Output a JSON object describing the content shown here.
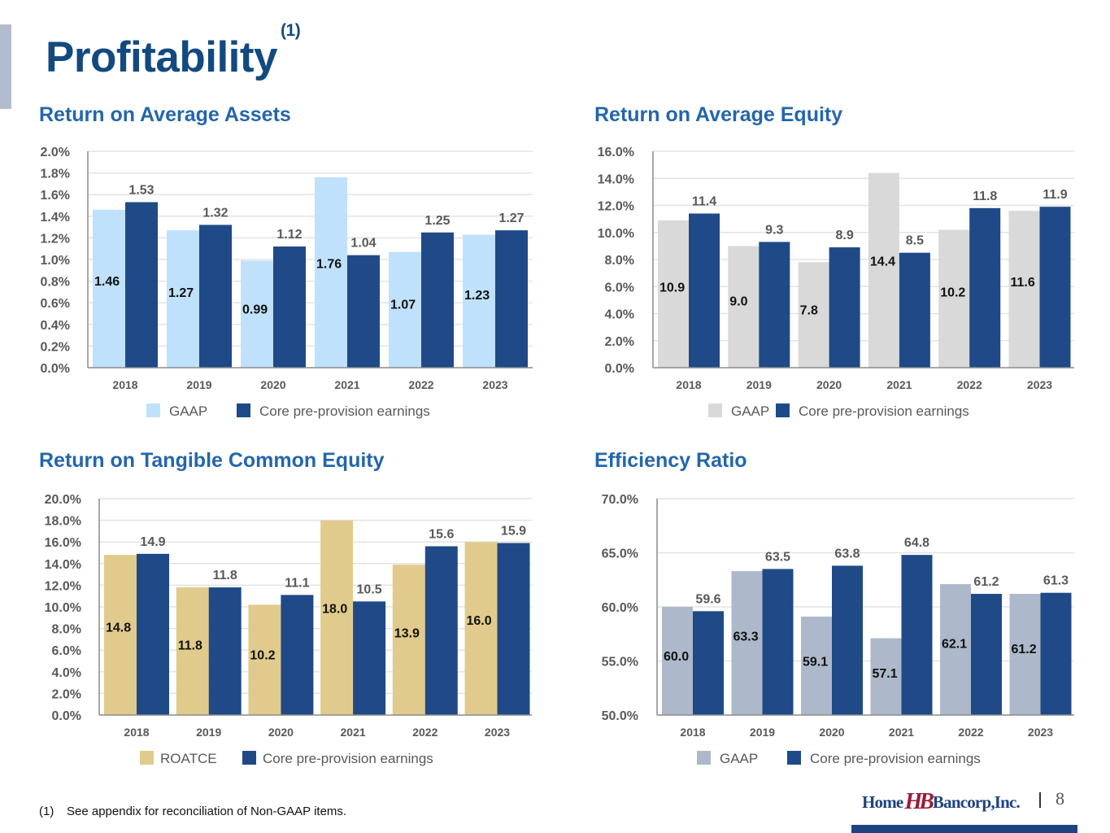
{
  "page": {
    "title": "Profitability",
    "title_footnote_ref": "(1)",
    "footnote_marker": "(1)",
    "footnote_text": "See appendix for reconciliation of Non-GAAP items.",
    "page_number": "8",
    "logo": {
      "left": "Home",
      "mark": "HB",
      "right": "Bancorp,Inc."
    }
  },
  "chart_data": [
    {
      "id": "roaa",
      "type": "bar",
      "title": "Return on Average Assets",
      "xlabel": "",
      "ylabel": "",
      "categories": [
        "2018",
        "2019",
        "2020",
        "2021",
        "2022",
        "2023"
      ],
      "ylim": [
        0,
        2.0
      ],
      "yticks": [
        "0.0%",
        "0.2%",
        "0.4%",
        "0.6%",
        "0.8%",
        "1.0%",
        "1.2%",
        "1.4%",
        "1.6%",
        "1.8%",
        "2.0%"
      ],
      "ytick_step": 0.2,
      "grid": true,
      "legend_position": "bottom",
      "series": [
        {
          "name": "GAAP",
          "color": "#bfe1fb",
          "label_position": "inside",
          "values": [
            1.46,
            1.27,
            0.99,
            1.76,
            1.07,
            1.23
          ],
          "labels": [
            "1.46",
            "1.27",
            "0.99",
            "1.76",
            "1.07",
            "1.23"
          ]
        },
        {
          "name": "Core pre-provision earnings",
          "color": "#1f4a87",
          "label_position": "above",
          "values": [
            1.53,
            1.32,
            1.12,
            1.04,
            1.25,
            1.27
          ],
          "labels": [
            "1.53",
            "1.32",
            "1.12",
            "1.04",
            "1.25",
            "1.27"
          ]
        }
      ]
    },
    {
      "id": "roae",
      "type": "bar",
      "title": "Return on Average Equity",
      "xlabel": "",
      "ylabel": "",
      "categories": [
        "2018",
        "2019",
        "2020",
        "2021",
        "2022",
        "2023"
      ],
      "ylim": [
        0,
        16.0
      ],
      "yticks": [
        "0.0%",
        "2.0%",
        "4.0%",
        "6.0%",
        "8.0%",
        "10.0%",
        "12.0%",
        "14.0%",
        "16.0%"
      ],
      "ytick_step": 2.0,
      "grid": true,
      "legend_position": "bottom",
      "series": [
        {
          "name": "GAAP",
          "color": "#d9d9d9",
          "label_position": "inside",
          "values": [
            10.9,
            9.0,
            7.8,
            14.4,
            10.2,
            11.6
          ],
          "labels": [
            "10.9",
            "9.0",
            "7.8",
            "14.4",
            "10.2",
            "11.6"
          ]
        },
        {
          "name": "Core pre-provision earnings",
          "color": "#1f4a87",
          "label_position": "above",
          "values": [
            11.4,
            9.3,
            8.9,
            8.5,
            11.8,
            11.9
          ],
          "labels": [
            "11.4",
            "9.3",
            "8.9",
            "8.5",
            "11.8",
            "11.9"
          ]
        }
      ]
    },
    {
      "id": "rotce",
      "type": "bar",
      "title": "Return on Tangible Common Equity",
      "xlabel": "",
      "ylabel": "",
      "categories": [
        "2018",
        "2019",
        "2020",
        "2021",
        "2022",
        "2023"
      ],
      "ylim": [
        0,
        20.0
      ],
      "yticks": [
        "0.0%",
        "2.0%",
        "4.0%",
        "6.0%",
        "8.0%",
        "10.0%",
        "12.0%",
        "14.0%",
        "16.0%",
        "18.0%",
        "20.0%"
      ],
      "ytick_step": 2.0,
      "grid": true,
      "legend_position": "bottom",
      "series": [
        {
          "name": "ROATCE",
          "color": "#e1cb8c",
          "label_position": "inside",
          "values": [
            14.8,
            11.8,
            10.2,
            18.0,
            13.9,
            16.0
          ],
          "labels": [
            "14.8",
            "11.8",
            "10.2",
            "18.0",
            "13.9",
            "16.0"
          ]
        },
        {
          "name": "Core pre-provision earnings",
          "color": "#1f4a87",
          "label_position": "above",
          "values": [
            14.9,
            11.8,
            11.1,
            10.5,
            15.6,
            15.9
          ],
          "labels": [
            "14.9",
            "11.8",
            "11.1",
            "10.5",
            "15.6",
            "15.9"
          ]
        }
      ]
    },
    {
      "id": "efficiency",
      "type": "bar",
      "title": "Efficiency Ratio",
      "xlabel": "",
      "ylabel": "",
      "categories": [
        "2018",
        "2019",
        "2020",
        "2021",
        "2022",
        "2023"
      ],
      "ylim": [
        50.0,
        70.0
      ],
      "yticks": [
        "50.0%",
        "55.0%",
        "60.0%",
        "65.0%",
        "70.0%"
      ],
      "ytick_step": 5.0,
      "grid": true,
      "legend_position": "bottom",
      "series": [
        {
          "name": "GAAP",
          "color": "#adb9ca",
          "label_position": "inside",
          "values": [
            60.0,
            63.3,
            59.1,
            57.1,
            62.1,
            61.2
          ],
          "labels": [
            "60.0",
            "63.3",
            "59.1",
            "57.1",
            "62.1",
            "61.2"
          ]
        },
        {
          "name": "Core pre-provision earnings",
          "color": "#1f4a87",
          "label_position": "above",
          "values": [
            59.6,
            63.5,
            63.8,
            64.8,
            61.2,
            61.3
          ],
          "labels": [
            "59.6",
            "63.5",
            "63.8",
            "64.8",
            "61.2",
            "61.3"
          ]
        }
      ]
    }
  ]
}
